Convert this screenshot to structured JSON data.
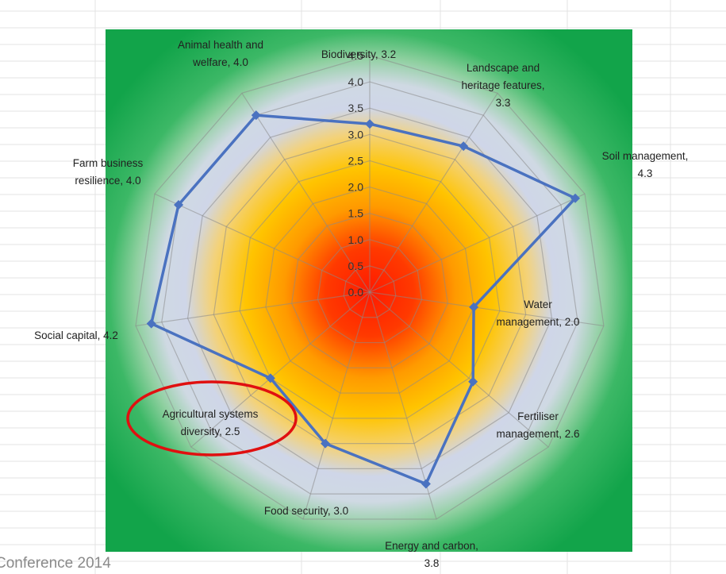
{
  "footer": {
    "text": "Conference 2014"
  },
  "chart_data": {
    "type": "radar",
    "title": "",
    "rlim": [
      0,
      4.5
    ],
    "ticks": [
      "0.0",
      "0.5",
      "1.0",
      "1.5",
      "2.0",
      "2.5",
      "3.0",
      "3.5",
      "4.0",
      "4.5"
    ],
    "grid": true,
    "series_color": "#4a72c0",
    "background": {
      "inner": "#ff1a00",
      "mid": "#ffc000",
      "pale": "#cfd6e8",
      "outer": "#1fae4f"
    },
    "categories": [
      {
        "name": "Biodiversity",
        "value": 3.2,
        "lines": [
          "Biodiversity, 3.2"
        ]
      },
      {
        "name": "Landscape and heritage features",
        "value": 3.3,
        "lines": [
          "Landscape and",
          "heritage features,",
          "3.3"
        ]
      },
      {
        "name": "Soil management",
        "value": 4.3,
        "lines": [
          "Soil management,",
          "4.3"
        ]
      },
      {
        "name": "Water management",
        "value": 2.0,
        "lines": [
          "Water",
          "management, 2.0"
        ]
      },
      {
        "name": "Fertiliser management",
        "value": 2.6,
        "lines": [
          "Fertiliser",
          "management, 2.6"
        ]
      },
      {
        "name": "Energy and carbon",
        "value": 3.8,
        "lines": [
          "Energy and carbon,",
          "3.8"
        ]
      },
      {
        "name": "Food security",
        "value": 3.0,
        "lines": [
          "Food security, 3.0"
        ]
      },
      {
        "name": "Agricultural systems diversity",
        "value": 2.5,
        "lines": [
          "Agricultural systems",
          "diversity, 2.5"
        ],
        "highlighted": true
      },
      {
        "name": "Social capital",
        "value": 4.2,
        "lines": [
          "Social capital, 4.2"
        ]
      },
      {
        "name": "Farm business resilience",
        "value": 4.0,
        "lines": [
          "Farm business",
          "resilience, 4.0"
        ]
      },
      {
        "name": "Animal health and welfare",
        "value": 4.0,
        "lines": [
          "Animal health and",
          "welfare, 4.0"
        ]
      }
    ]
  }
}
